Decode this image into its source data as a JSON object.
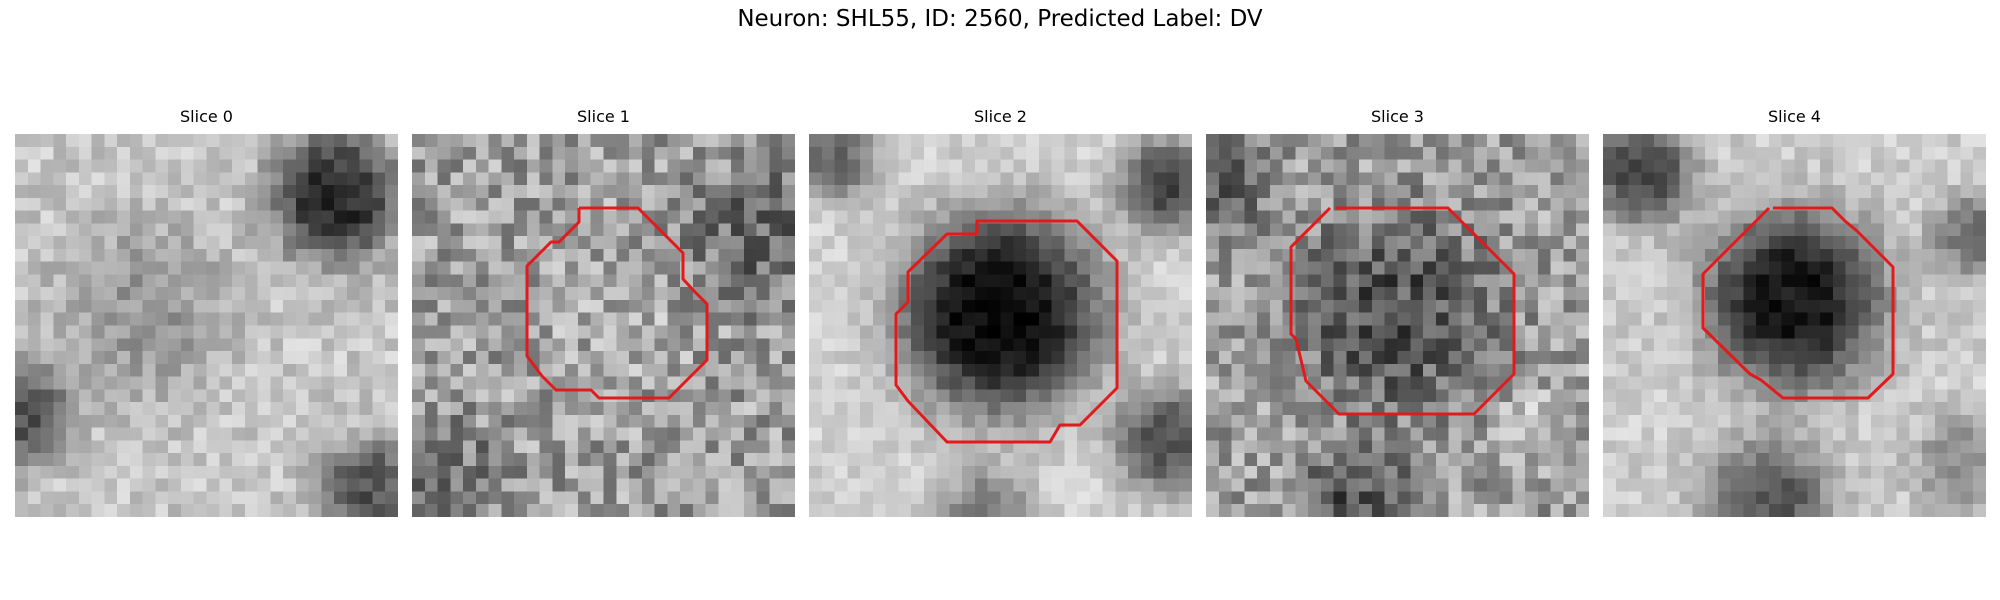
{
  "figure": {
    "title": "Neuron: SHL55, ID: 2560, Predicted Label: DV"
  },
  "contour_color": "#e31a1c",
  "panels": [
    {
      "title": "Slice 0",
      "has_contour": false,
      "scene": "bright-field-dark-top-right"
    },
    {
      "title": "Slice 1",
      "has_contour": true,
      "scene": "noisy-gray-cell"
    },
    {
      "title": "Slice 2",
      "has_contour": true,
      "scene": "dark-cell-bright-rim"
    },
    {
      "title": "Slice 3",
      "has_contour": true,
      "scene": "noisy-dark-cell"
    },
    {
      "title": "Slice 4",
      "has_contour": true,
      "scene": "dark-cell-light-surround"
    }
  ]
}
